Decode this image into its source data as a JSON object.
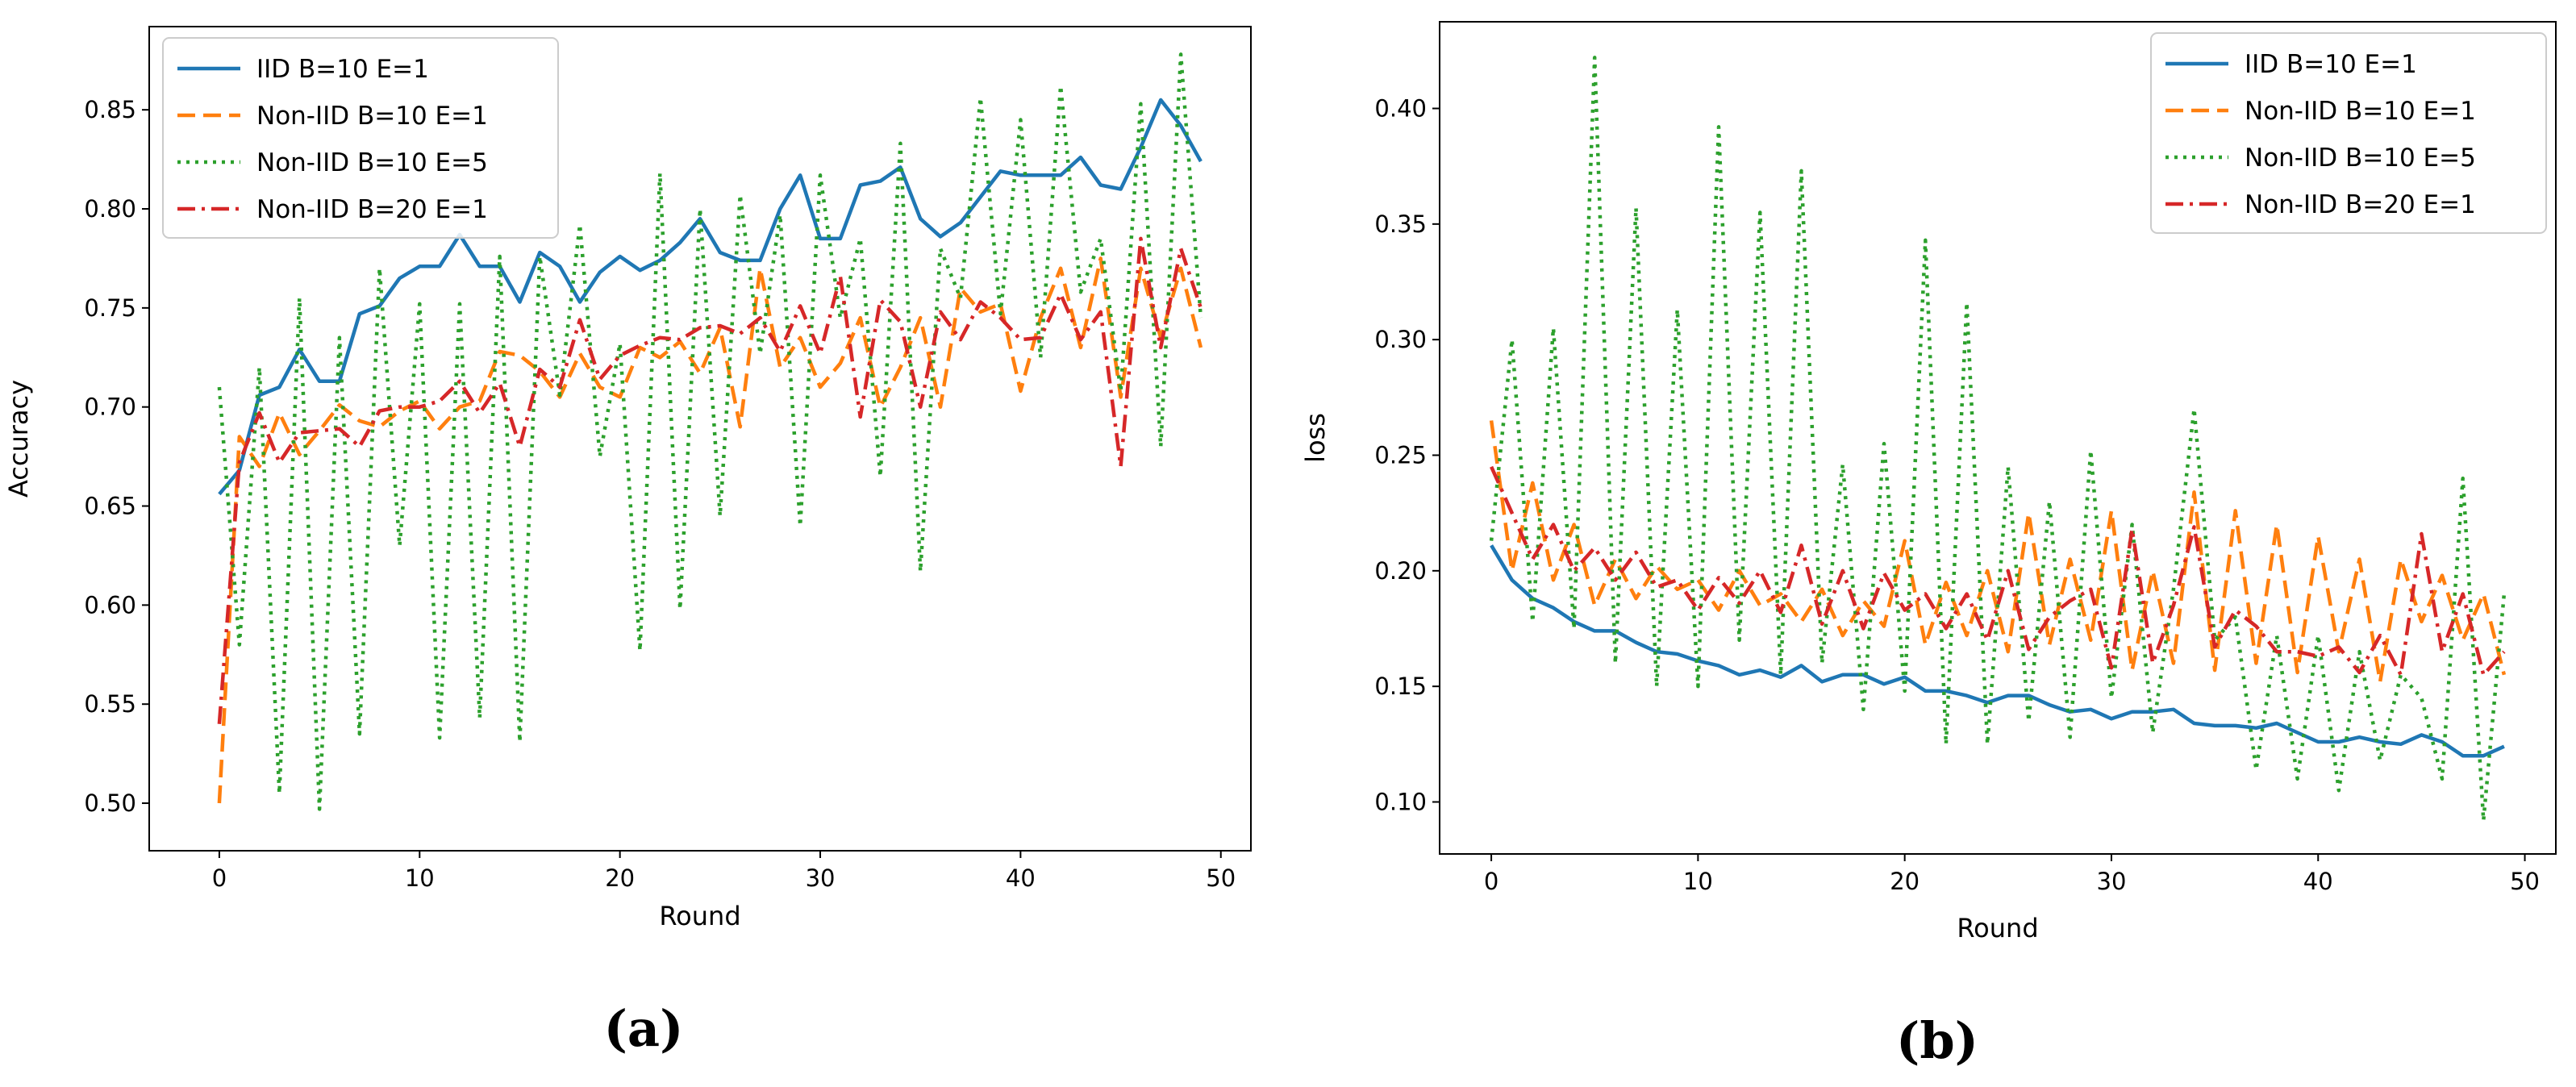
{
  "colors": {
    "IID": "#1f77b4",
    "NonIID_E1": "#ff7f0e",
    "NonIID_E5": "#2ca02c",
    "NonIID_B20": "#d62728"
  },
  "chart_data": [
    {
      "type": "line",
      "caption": "(a)",
      "title": "",
      "xlabel": "Round",
      "ylabel": "Accuracy",
      "xlim": [
        -3.5,
        51.5
      ],
      "ylim": [
        0.476,
        0.892
      ],
      "xticks": [
        0,
        10,
        20,
        30,
        40,
        50
      ],
      "yticks": [
        0.5,
        0.55,
        0.6,
        0.65,
        0.7,
        0.75,
        0.8,
        0.85
      ],
      "ytick_labels": [
        "0.50",
        "0.55",
        "0.60",
        "0.65",
        "0.70",
        "0.75",
        "0.80",
        "0.85"
      ],
      "legend_position": "top-left",
      "series": [
        {
          "name": "IID B=10 E=1",
          "style": "solid",
          "color_key": "IID",
          "values": [
            0.656,
            0.668,
            0.706,
            0.71,
            0.729,
            0.713,
            0.713,
            0.747,
            0.751,
            0.765,
            0.771,
            0.771,
            0.787,
            0.771,
            0.771,
            0.753,
            0.778,
            0.771,
            0.753,
            0.768,
            0.776,
            0.769,
            0.774,
            0.783,
            0.795,
            0.778,
            0.774,
            0.774,
            0.8,
            0.817,
            0.785,
            0.785,
            0.812,
            0.814,
            0.821,
            0.795,
            0.786,
            0.793,
            0.806,
            0.819,
            0.817,
            0.817,
            0.817,
            0.826,
            0.812,
            0.81,
            0.831,
            0.855,
            0.842,
            0.824
          ]
        },
        {
          "name": "Non-IID B=10 E=1",
          "style": "dashed",
          "color_key": "NonIID_E1",
          "values": [
            0.5,
            0.685,
            0.67,
            0.697,
            0.676,
            0.688,
            0.701,
            0.693,
            0.69,
            0.698,
            0.703,
            0.689,
            0.7,
            0.703,
            0.728,
            0.726,
            0.718,
            0.705,
            0.727,
            0.71,
            0.705,
            0.73,
            0.725,
            0.733,
            0.717,
            0.74,
            0.69,
            0.77,
            0.72,
            0.735,
            0.71,
            0.722,
            0.745,
            0.7,
            0.72,
            0.745,
            0.7,
            0.76,
            0.748,
            0.752,
            0.708,
            0.745,
            0.77,
            0.73,
            0.775,
            0.705,
            0.77,
            0.735,
            0.77,
            0.73
          ]
        },
        {
          "name": "Non-IID B=10 E=5",
          "style": "dotted",
          "color_key": "NonIID_E5",
          "values": [
            0.71,
            0.58,
            0.72,
            0.505,
            0.755,
            0.497,
            0.735,
            0.535,
            0.77,
            0.63,
            0.752,
            0.533,
            0.752,
            0.543,
            0.776,
            0.531,
            0.776,
            0.706,
            0.792,
            0.675,
            0.732,
            0.577,
            0.818,
            0.598,
            0.8,
            0.645,
            0.807,
            0.727,
            0.797,
            0.64,
            0.817,
            0.745,
            0.785,
            0.665,
            0.833,
            0.617,
            0.78,
            0.755,
            0.856,
            0.747,
            0.845,
            0.725,
            0.862,
            0.758,
            0.785,
            0.708,
            0.853,
            0.68,
            0.878,
            0.745
          ]
        },
        {
          "name": "Non-IID B=20 E=1",
          "style": "dashdot",
          "color_key": "NonIID_B20",
          "values": [
            0.54,
            0.672,
            0.697,
            0.672,
            0.687,
            0.688,
            0.689,
            0.68,
            0.698,
            0.7,
            0.7,
            0.703,
            0.713,
            0.697,
            0.712,
            0.68,
            0.719,
            0.71,
            0.744,
            0.714,
            0.726,
            0.731,
            0.735,
            0.734,
            0.74,
            0.741,
            0.737,
            0.745,
            0.728,
            0.751,
            0.727,
            0.766,
            0.695,
            0.754,
            0.743,
            0.7,
            0.748,
            0.734,
            0.753,
            0.745,
            0.734,
            0.735,
            0.757,
            0.734,
            0.748,
            0.67,
            0.785,
            0.73,
            0.78,
            0.75
          ]
        }
      ]
    },
    {
      "type": "line",
      "caption": "(b)",
      "title": "",
      "xlabel": "Round",
      "ylabel": "loss",
      "xlim": [
        -2.5,
        51.5
      ],
      "ylim": [
        0.0775,
        0.4375
      ],
      "xticks": [
        0,
        10,
        20,
        30,
        40,
        50
      ],
      "yticks": [
        0.1,
        0.15,
        0.2,
        0.25,
        0.3,
        0.35,
        0.4
      ],
      "ytick_labels": [
        "0.10",
        "0.15",
        "0.20",
        "0.25",
        "0.30",
        "0.35",
        "0.40"
      ],
      "legend_position": "top-right",
      "series": [
        {
          "name": "IID B=10 E=1",
          "style": "solid",
          "color_key": "IID",
          "values": [
            0.211,
            0.196,
            0.188,
            0.184,
            0.178,
            0.174,
            0.174,
            0.169,
            0.165,
            0.164,
            0.161,
            0.159,
            0.155,
            0.157,
            0.154,
            0.159,
            0.152,
            0.155,
            0.155,
            0.151,
            0.154,
            0.148,
            0.148,
            0.146,
            0.143,
            0.146,
            0.146,
            0.142,
            0.139,
            0.14,
            0.136,
            0.139,
            0.139,
            0.14,
            0.134,
            0.133,
            0.133,
            0.132,
            0.134,
            0.13,
            0.126,
            0.126,
            0.128,
            0.126,
            0.125,
            0.129,
            0.126,
            0.12,
            0.12,
            0.124
          ]
        },
        {
          "name": "Non-IID B=10 E=1",
          "style": "dashed",
          "color_key": "NonIID_E1",
          "values": [
            0.265,
            0.2,
            0.238,
            0.196,
            0.22,
            0.185,
            0.205,
            0.188,
            0.202,
            0.192,
            0.196,
            0.183,
            0.2,
            0.185,
            0.19,
            0.178,
            0.192,
            0.172,
            0.187,
            0.176,
            0.213,
            0.168,
            0.195,
            0.172,
            0.2,
            0.165,
            0.225,
            0.168,
            0.205,
            0.17,
            0.226,
            0.157,
            0.2,
            0.16,
            0.234,
            0.157,
            0.226,
            0.16,
            0.22,
            0.156,
            0.215,
            0.165,
            0.205,
            0.152,
            0.205,
            0.178,
            0.198,
            0.17,
            0.19,
            0.155
          ]
        },
        {
          "name": "Non-IID B=10 E=5",
          "style": "dotted",
          "color_key": "NonIID_E5",
          "values": [
            0.213,
            0.3,
            0.178,
            0.305,
            0.175,
            0.422,
            0.16,
            0.357,
            0.15,
            0.313,
            0.15,
            0.392,
            0.17,
            0.355,
            0.155,
            0.373,
            0.16,
            0.246,
            0.14,
            0.255,
            0.148,
            0.343,
            0.125,
            0.316,
            0.125,
            0.245,
            0.135,
            0.23,
            0.128,
            0.252,
            0.145,
            0.22,
            0.13,
            0.192,
            0.27,
            0.17,
            0.18,
            0.114,
            0.172,
            0.11,
            0.172,
            0.105,
            0.165,
            0.118,
            0.155,
            0.145,
            0.11,
            0.24,
            0.092,
            0.19
          ]
        },
        {
          "name": "Non-IID B=20 E=1",
          "style": "dashdot",
          "color_key": "NonIID_B20",
          "values": [
            0.245,
            0.225,
            0.205,
            0.22,
            0.2,
            0.21,
            0.196,
            0.208,
            0.193,
            0.196,
            0.183,
            0.197,
            0.186,
            0.2,
            0.182,
            0.211,
            0.177,
            0.2,
            0.175,
            0.199,
            0.183,
            0.19,
            0.175,
            0.19,
            0.17,
            0.2,
            0.166,
            0.18,
            0.187,
            0.192,
            0.158,
            0.218,
            0.16,
            0.185,
            0.219,
            0.167,
            0.183,
            0.176,
            0.165,
            0.165,
            0.163,
            0.167,
            0.156,
            0.172,
            0.155,
            0.216,
            0.165,
            0.19,
            0.155,
            0.165
          ]
        }
      ]
    }
  ]
}
